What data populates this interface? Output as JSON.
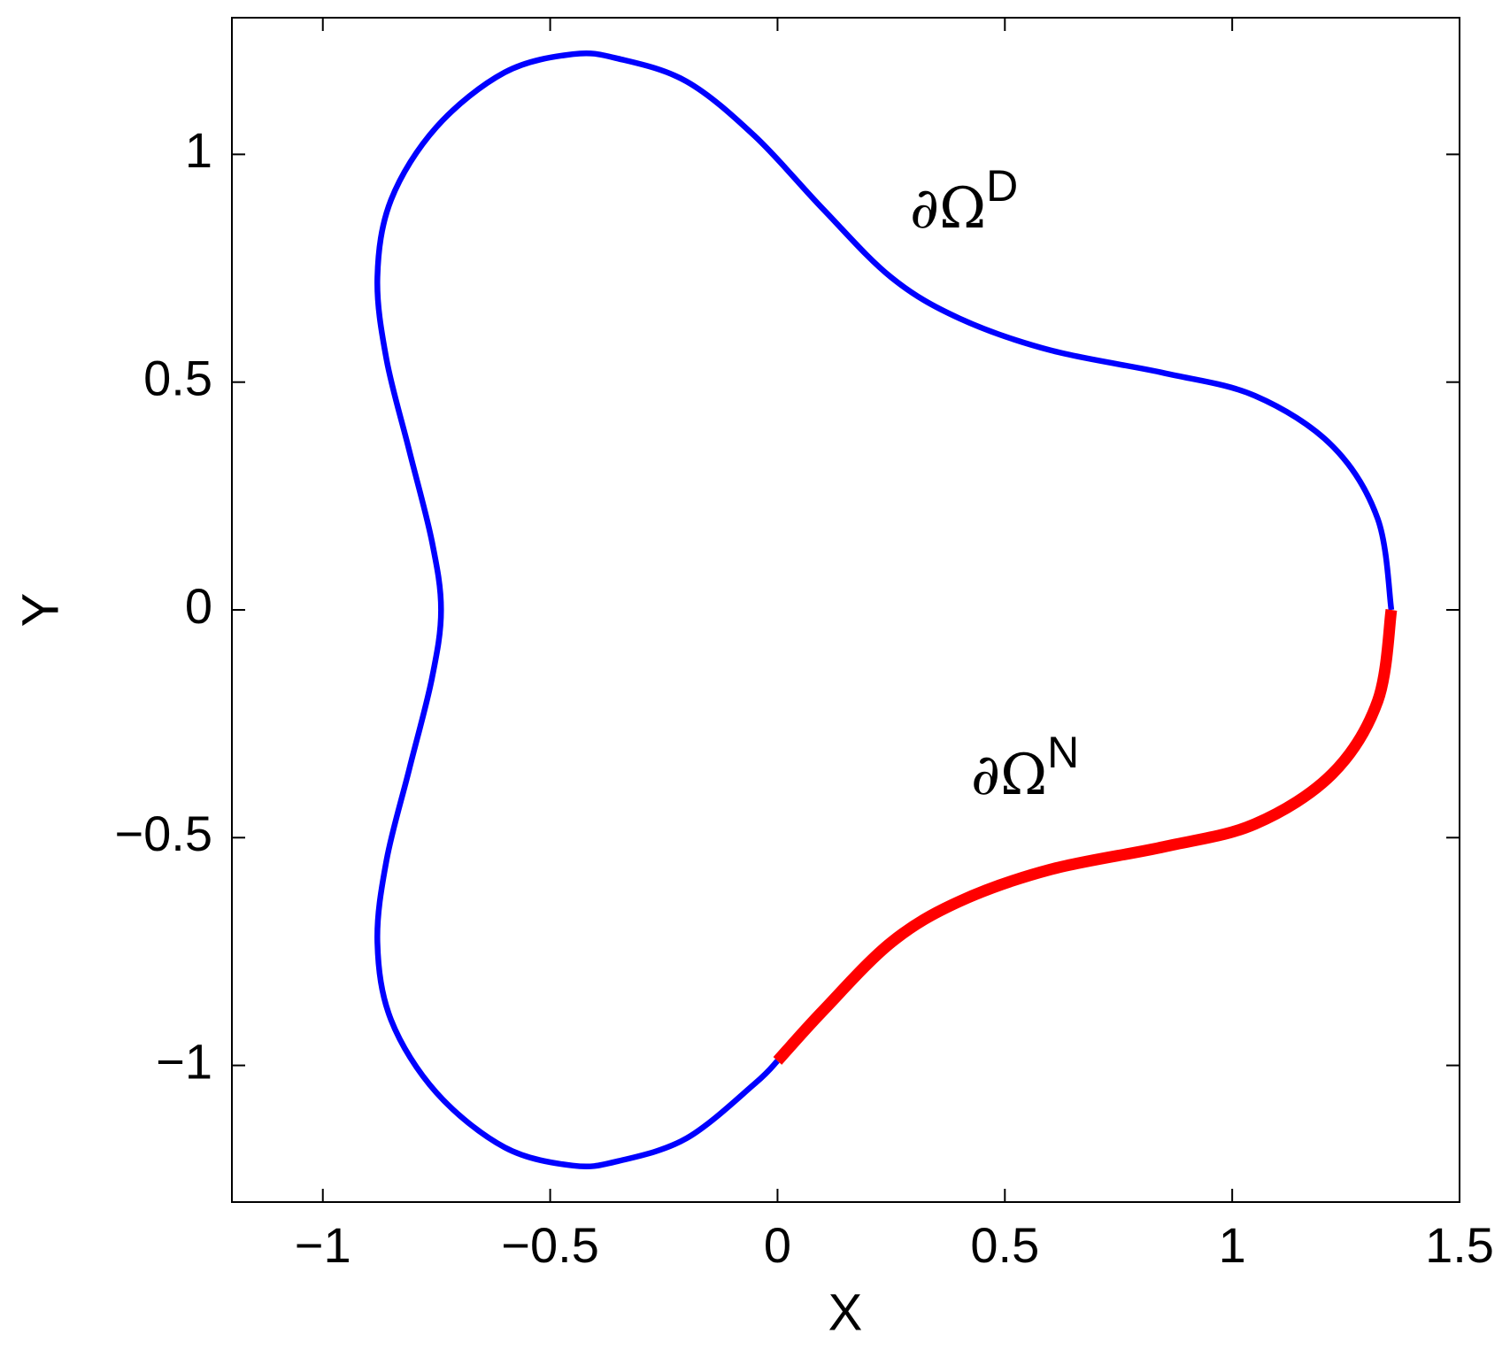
{
  "chart_data": {
    "type": "line",
    "xlabel": "X",
    "ylabel": "Y",
    "xlim": [
      -1.2,
      1.5
    ],
    "ylim": [
      -1.3,
      1.3
    ],
    "xticks": [
      {
        "value": -1,
        "label": "−1"
      },
      {
        "value": -0.5,
        "label": "−0.5"
      },
      0,
      0.5,
      1,
      1.5
    ],
    "yticks": [
      {
        "value": -1,
        "label": "−1"
      },
      {
        "value": -0.5,
        "label": "−0.5"
      },
      0,
      0.5,
      1
    ],
    "series": [
      {
        "color": "#0000ff",
        "x": [
          0,
          -0.05,
          -0.2,
          -0.35,
          -0.45,
          -0.6,
          -0.75,
          -0.85,
          -0.88,
          -0.86,
          -0.81,
          -0.76,
          -0.74,
          -0.76,
          -0.81,
          -0.86,
          -0.88,
          -0.85,
          -0.75,
          -0.6,
          -0.45,
          -0.35,
          -0.2,
          -0.05,
          0.1,
          0.25,
          0.4,
          0.6,
          0.85,
          1.05,
          1.22,
          1.32,
          1.35
        ],
        "values": [
          -0.99,
          -1.04,
          -1.16,
          -1.21,
          -1.22,
          -1.18,
          -1.06,
          -0.9,
          -0.73,
          -0.55,
          -0.35,
          -0.15,
          0,
          0.15,
          0.35,
          0.55,
          0.73,
          0.9,
          1.06,
          1.18,
          1.22,
          1.21,
          1.16,
          1.04,
          0.88,
          0.73,
          0.64,
          0.57,
          0.52,
          0.47,
          0.36,
          0.2,
          0
        ]
      },
      {
        "color": "#ff0000",
        "x": [
          0,
          0.1,
          0.25,
          0.4,
          0.6,
          0.85,
          1.05,
          1.22,
          1.32,
          1.35
        ],
        "values": [
          -0.99,
          -0.88,
          -0.73,
          -0.64,
          -0.57,
          -0.52,
          -0.47,
          -0.36,
          -0.2,
          0
        ]
      }
    ],
    "annotations": [
      {
        "text": "∂Ω",
        "superscript": "D"
      },
      {
        "text": "∂Ω",
        "superscript": "N"
      }
    ]
  }
}
